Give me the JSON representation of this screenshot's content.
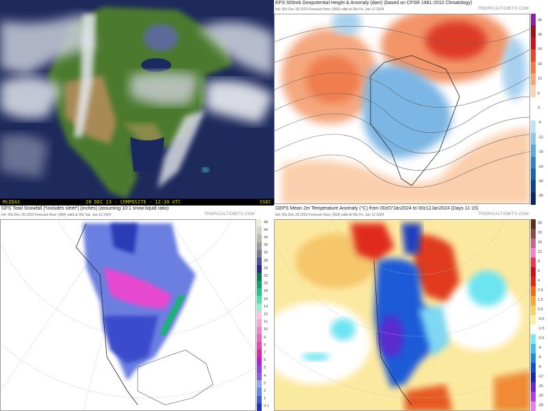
{
  "satellite": {
    "left_label": "McIDAS",
    "center_label": "28 DEC 23 - COMPOSITE - 12:30 UTC",
    "right_label": "SSEC"
  },
  "eps_500mb": {
    "title": "EPS 500mb Geopotential Height & Anomaly (dam) (based on CFSR 1981-2010 Climatology)",
    "subtitle": "Init: 00z Dec 28 2023   Forecast Hour: [360]   valid at 00z Fri, Jan 12 2024",
    "brand": "TROPICALTIDBITS.COM",
    "colorbar": {
      "ticks": [
        "36",
        "30",
        "24",
        "18",
        "12",
        "6",
        "0",
        "-6",
        "-12",
        "-18",
        "-24",
        "-30",
        "-36"
      ],
      "colors": [
        "#8a1fa8",
        "#9e0f1a",
        "#c8161c",
        "#e34a2a",
        "#f07a44",
        "#f6a57a",
        "#fbd0b0",
        "#ffffff",
        "#ffffff",
        "#bfe0f5",
        "#8fc6ec",
        "#5aa7dd",
        "#2f84c8",
        "#1a63ab",
        "#10438a",
        "#0a2668"
      ]
    }
  },
  "gfs_snowfall": {
    "title": "GFS Total Snowfall [*includes sleet*] (inches) (assuming 10:1 snow:liquid ratio)",
    "subtitle": "Init: 00z Dec 28 2023   Forecast Hour: [384]   valid at 00z Sat, Jan 13 2024",
    "brand": "TROPICALTIDBITS.COM",
    "colorbar": {
      "ticks": [
        "48",
        "44",
        "40",
        "36",
        "32",
        "28",
        "24",
        "22",
        "20",
        "18",
        "16",
        "14",
        "12",
        "11",
        "10",
        "9",
        "8",
        "7",
        "6",
        "5",
        "4",
        "3",
        "2",
        "1",
        "0.1"
      ],
      "colors": [
        "#eeeede",
        "#d6d6c4",
        "#bcbcaa",
        "#9c9c96",
        "#7a7a94",
        "#50509a",
        "#2a2a86",
        "#0e7a4e",
        "#14a068",
        "#22c486",
        "#52e0a8",
        "#92f0c8",
        "#f4c8e0",
        "#f0a8d4",
        "#ec88c8",
        "#e868bc",
        "#e448b0",
        "#dc28a0",
        "#b020d8",
        "#9040e8",
        "#8060e0",
        "#90a8f0",
        "#6488e8",
        "#3c5cd8",
        "#2434b8"
      ]
    }
  },
  "geps_2m_temp": {
    "title": "GEPS Mean 2m Temperature Anomaly (°C) from 00z07Jan2024 to 00z12Jan2024 (Days 11-15)",
    "subtitle": "Init: 00z Dec 28 2023   Forecast Hour: [360]   valid at 00z Fri, Jan 12 2024",
    "brand": "TROPICALTIDBITS.COM",
    "colorbar": {
      "ticks": [
        "28",
        "20",
        "16",
        "12",
        "8",
        "6",
        "4",
        "2.5",
        "1.5",
        "0.5",
        "-0.5",
        "-1.5",
        "-2.5",
        "-4",
        "-6",
        "-8",
        "-12",
        "-16",
        "-20",
        "-28"
      ],
      "colors": [
        "#5a3020",
        "#8a4a48",
        "#c06a8a",
        "#f088c8",
        "#e8384c",
        "#c8101c",
        "#e02818",
        "#f06a18",
        "#f8a830",
        "#fad060",
        "#fbf0a0",
        "#ffffff",
        "#7ee8f0",
        "#40c0ec",
        "#2088e0",
        "#1050c8",
        "#1a2aa0",
        "#6a28d0",
        "#b040e0",
        "#e080e8"
      ]
    }
  }
}
